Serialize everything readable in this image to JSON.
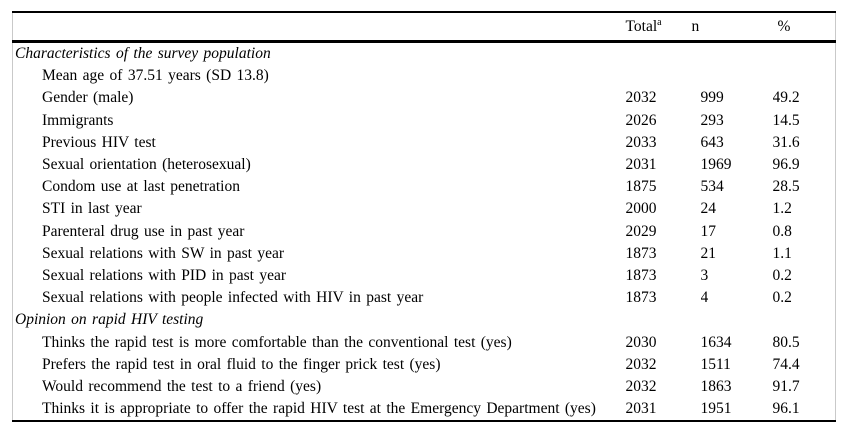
{
  "table": {
    "header": {
      "total_label": "Total",
      "total_superscript": "a",
      "n_label": "n",
      "pct_label": "%"
    },
    "sections": [
      {
        "title": "Characteristics of the survey population",
        "rows": [
          {
            "label": "Mean age of 37.51 years (SD 13.8)",
            "total": "",
            "n": "",
            "pct": ""
          },
          {
            "label": "Gender (male)",
            "total": "2032",
            "n": "999",
            "pct": "49.2"
          },
          {
            "label": "Immigrants",
            "total": "2026",
            "n": "293",
            "pct": "14.5"
          },
          {
            "label": "Previous HIV test",
            "total": "2033",
            "n": "643",
            "pct": "31.6"
          },
          {
            "label": "Sexual orientation (heterosexual)",
            "total": "2031",
            "n": "1969",
            "pct": "96.9"
          },
          {
            "label": "Condom use at last penetration",
            "total": "1875",
            "n": "534",
            "pct": "28.5"
          },
          {
            "label": "STI in last year",
            "total": "2000",
            "n": "24",
            "pct": "1.2"
          },
          {
            "label": "Parenteral drug use in past year",
            "total": "2029",
            "n": "17",
            "pct": "0.8"
          },
          {
            "label": "Sexual relations with SW in past year",
            "total": "1873",
            "n": "21",
            "pct": "1.1"
          },
          {
            "label": "Sexual relations with PID in past year",
            "total": "1873",
            "n": "3",
            "pct": "0.2"
          },
          {
            "label": "Sexual relations with people infected with HIV in past year",
            "total": "1873",
            "n": "4",
            "pct": "0.2"
          }
        ]
      },
      {
        "title": "Opinion on rapid HIV testing",
        "rows": [
          {
            "label": "Thinks the rapid test is more comfortable than the conventional test (yes)",
            "total": "2030",
            "n": "1634",
            "pct": "80.5"
          },
          {
            "label": "Prefers the rapid test in oral fluid to the finger prick test (yes)",
            "total": "2032",
            "n": "1511",
            "pct": "74.4"
          },
          {
            "label": "Would recommend the test to a friend (yes)",
            "total": "2032",
            "n": "1863",
            "pct": "91.7"
          },
          {
            "label": "Thinks it is appropriate to offer the rapid HIV test at the Emergency Department (yes)",
            "total": "2031",
            "n": "1951",
            "pct": "96.1"
          }
        ]
      }
    ]
  },
  "colors": {
    "text": "#000000",
    "rule": "#000000",
    "side_frame": "#c9c9c9",
    "background": "#ffffff"
  }
}
